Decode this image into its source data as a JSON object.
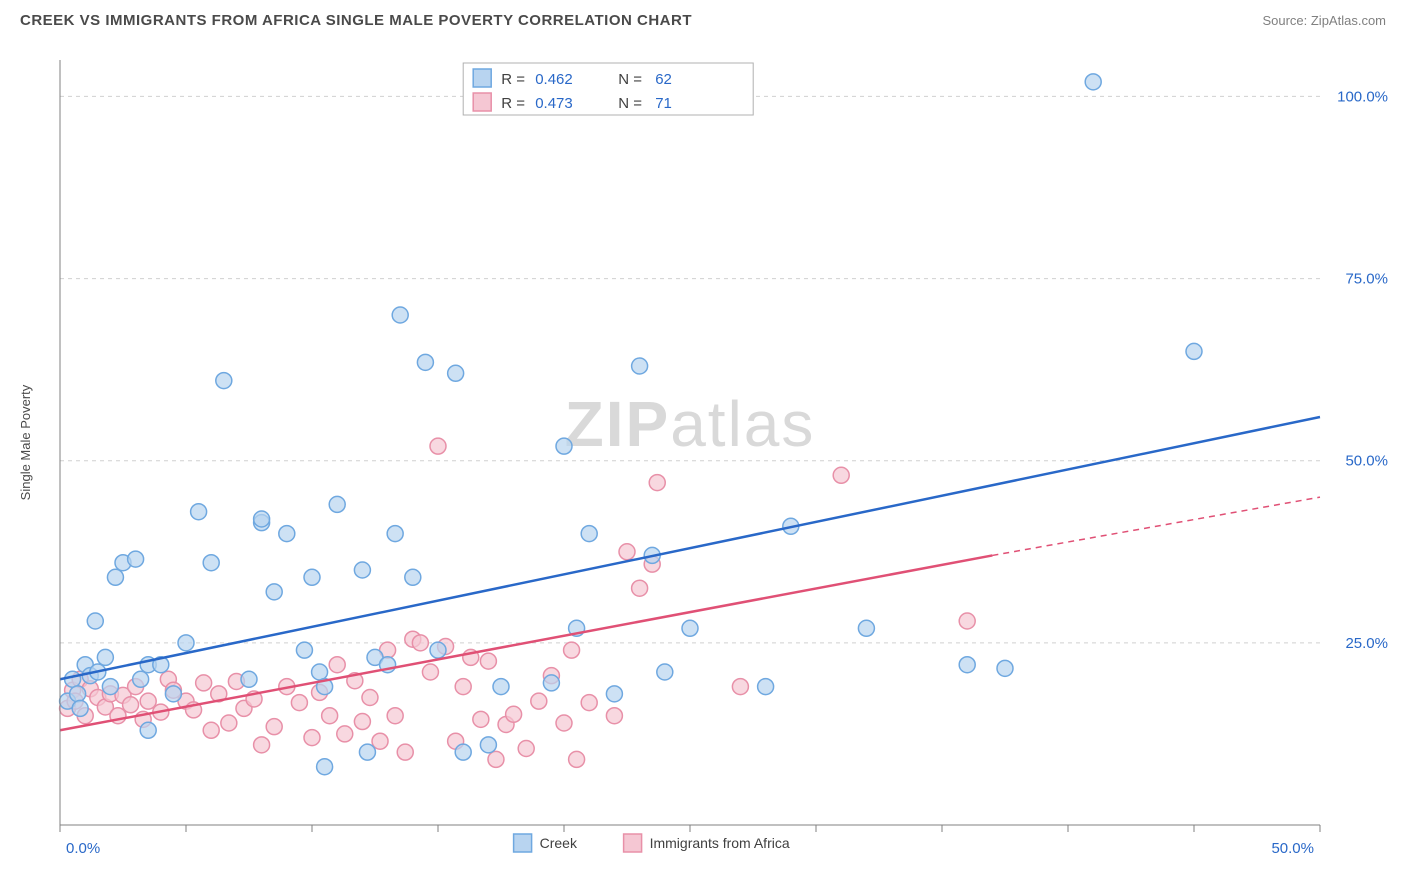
{
  "title": "CREEK VS IMMIGRANTS FROM AFRICA SINGLE MALE POVERTY CORRELATION CHART",
  "source": "Source: ZipAtlas.com",
  "watermark": "ZIPatlas",
  "chart": {
    "type": "scatter",
    "xlim": [
      0,
      50
    ],
    "ylim": [
      0,
      105
    ],
    "xlabel": "",
    "ylabel": "Single Male Poverty",
    "xticks": [
      0,
      5,
      10,
      15,
      20,
      25,
      30,
      35,
      40,
      45,
      50
    ],
    "yticks": [
      25,
      50,
      75,
      100
    ],
    "xtick_labels": {
      "0": "0.0%",
      "50": "50.0%"
    },
    "ytick_labels": {
      "25": "25.0%",
      "50": "50.0%",
      "75": "75.0%",
      "100": "100.0%"
    },
    "grid_color": "#d0d0d0",
    "axis_color": "#808080",
    "background_color": "#ffffff",
    "series": [
      {
        "name": "Creek",
        "marker_fill": "#b8d4f0",
        "marker_stroke": "#6fa8e0",
        "marker_radius": 8,
        "line_color": "#2968c8",
        "line_width": 2.5,
        "r": "0.462",
        "n": "62",
        "trend_start": [
          0,
          20
        ],
        "trend_end": [
          50,
          56
        ],
        "points": [
          [
            0.3,
            17
          ],
          [
            0.5,
            20
          ],
          [
            0.7,
            18
          ],
          [
            0.8,
            16
          ],
          [
            1,
            22
          ],
          [
            1.2,
            20.5
          ],
          [
            1.4,
            28
          ],
          [
            1.5,
            21
          ],
          [
            1.8,
            23
          ],
          [
            2,
            19
          ],
          [
            2.2,
            34
          ],
          [
            2.5,
            36
          ],
          [
            3,
            36.5
          ],
          [
            3.2,
            20
          ],
          [
            3.5,
            22
          ],
          [
            3.5,
            13
          ],
          [
            4,
            22
          ],
          [
            4.5,
            18
          ],
          [
            5,
            25
          ],
          [
            5.5,
            43
          ],
          [
            6,
            36
          ],
          [
            6.5,
            61
          ],
          [
            7.5,
            20
          ],
          [
            8,
            41.5
          ],
          [
            8,
            42
          ],
          [
            8.5,
            32
          ],
          [
            9,
            40
          ],
          [
            9.7,
            24
          ],
          [
            10,
            34
          ],
          [
            10.3,
            21
          ],
          [
            10.5,
            19
          ],
          [
            11,
            44
          ],
          [
            12,
            35
          ],
          [
            12.2,
            10
          ],
          [
            12.5,
            23
          ],
          [
            13,
            22
          ],
          [
            13.3,
            40
          ],
          [
            13.5,
            70
          ],
          [
            14,
            34
          ],
          [
            14.5,
            63.5
          ],
          [
            15,
            24
          ],
          [
            15.7,
            62
          ],
          [
            16,
            10
          ],
          [
            17,
            11
          ],
          [
            17.5,
            19
          ],
          [
            19.5,
            19.5
          ],
          [
            20,
            52
          ],
          [
            20.5,
            27
          ],
          [
            21,
            40
          ],
          [
            22,
            18
          ],
          [
            23,
            63
          ],
          [
            23.5,
            37
          ],
          [
            24,
            21
          ],
          [
            25,
            27
          ],
          [
            28,
            19
          ],
          [
            29,
            41
          ],
          [
            32,
            27
          ],
          [
            36,
            22
          ],
          [
            37.5,
            21.5
          ],
          [
            41,
            102
          ],
          [
            45,
            65
          ],
          [
            10.5,
            8
          ]
        ]
      },
      {
        "name": "Immigrants from Africa",
        "marker_fill": "#f5c7d3",
        "marker_stroke": "#e890a8",
        "marker_radius": 8,
        "line_color": "#e05075",
        "line_width": 2.5,
        "r": "0.473",
        "n": "71",
        "trend_start": [
          0,
          13
        ],
        "trend_end_solid": [
          37,
          37
        ],
        "trend_end_dashed": [
          50,
          45
        ],
        "points": [
          [
            0.3,
            16
          ],
          [
            0.5,
            18.5
          ],
          [
            0.6,
            17
          ],
          [
            0.8,
            20
          ],
          [
            1,
            15
          ],
          [
            1.2,
            18.7
          ],
          [
            1.5,
            17.5
          ],
          [
            1.8,
            16.2
          ],
          [
            2,
            18
          ],
          [
            2.3,
            15
          ],
          [
            2.5,
            17.8
          ],
          [
            2.8,
            16.5
          ],
          [
            3,
            19
          ],
          [
            3.3,
            14.5
          ],
          [
            3.5,
            17
          ],
          [
            4,
            15.5
          ],
          [
            4.3,
            20
          ],
          [
            4.5,
            18.5
          ],
          [
            5,
            17
          ],
          [
            5.3,
            15.8
          ],
          [
            5.7,
            19.5
          ],
          [
            6,
            13
          ],
          [
            6.3,
            18
          ],
          [
            6.7,
            14
          ],
          [
            7,
            19.7
          ],
          [
            7.3,
            16
          ],
          [
            7.7,
            17.3
          ],
          [
            8,
            11
          ],
          [
            8.5,
            13.5
          ],
          [
            9,
            19
          ],
          [
            9.5,
            16.8
          ],
          [
            10,
            12
          ],
          [
            10.3,
            18.2
          ],
          [
            10.7,
            15
          ],
          [
            11,
            22
          ],
          [
            11.3,
            12.5
          ],
          [
            11.7,
            19.8
          ],
          [
            12,
            14.2
          ],
          [
            12.3,
            17.5
          ],
          [
            12.7,
            11.5
          ],
          [
            13,
            24
          ],
          [
            13.3,
            15
          ],
          [
            13.7,
            10
          ],
          [
            14,
            25.5
          ],
          [
            14.3,
            25
          ],
          [
            14.7,
            21
          ],
          [
            15,
            52
          ],
          [
            15.3,
            24.5
          ],
          [
            15.7,
            11.5
          ],
          [
            16,
            19
          ],
          [
            16.3,
            23
          ],
          [
            16.7,
            14.5
          ],
          [
            17,
            22.5
          ],
          [
            17.3,
            9
          ],
          [
            17.7,
            13.8
          ],
          [
            18,
            15.2
          ],
          [
            18.5,
            10.5
          ],
          [
            19,
            17
          ],
          [
            19.5,
            20.5
          ],
          [
            20,
            14
          ],
          [
            20.5,
            9
          ],
          [
            21,
            16.8
          ],
          [
            22,
            15
          ],
          [
            22.5,
            37.5
          ],
          [
            23,
            32.5
          ],
          [
            23.5,
            35.8
          ],
          [
            23.7,
            47
          ],
          [
            27,
            19
          ],
          [
            31,
            48
          ],
          [
            36,
            28
          ],
          [
            20.3,
            24
          ]
        ]
      }
    ],
    "legend_top": {
      "box_stroke": "#b0b0b0",
      "box_fill": "#ffffff"
    },
    "legend_bottom": {
      "series1_label": "Creek",
      "series2_label": "Immigrants from Africa"
    }
  }
}
